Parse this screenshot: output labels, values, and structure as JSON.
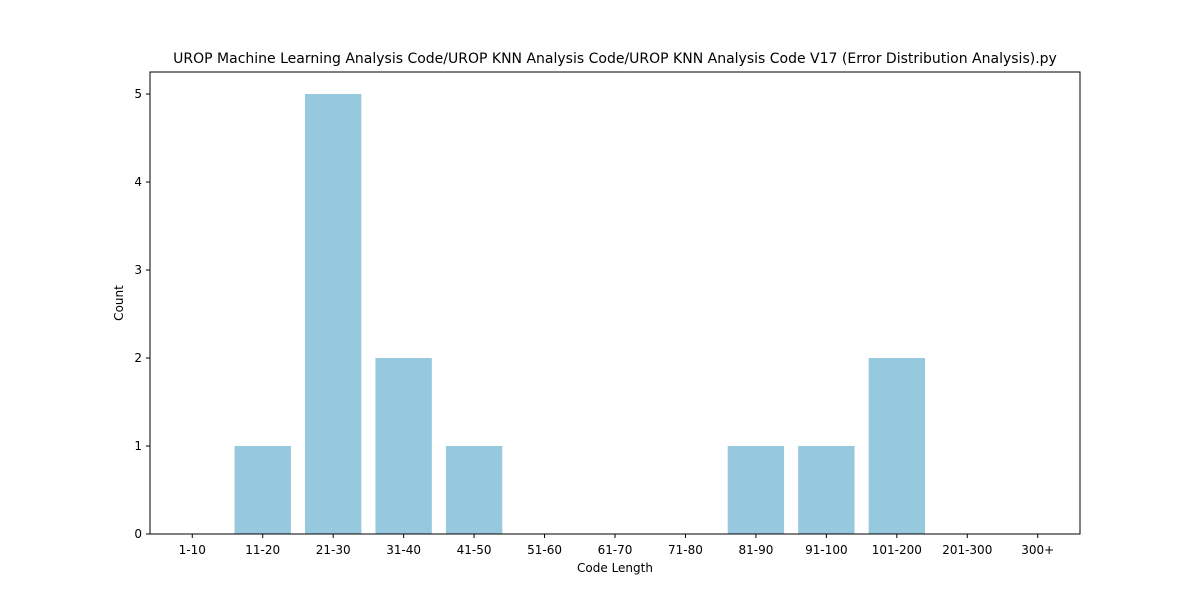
{
  "chart_data": {
    "type": "bar",
    "title": "UROP Machine Learning Analysis Code/UROP KNN Analysis Code/UROP KNN Analysis Code V17 (Error Distribution Analysis).py",
    "xlabel": "Code Length",
    "ylabel": "Count",
    "categories": [
      "1-10",
      "11-20",
      "21-30",
      "31-40",
      "41-50",
      "51-60",
      "61-70",
      "71-80",
      "81-90",
      "91-100",
      "101-200",
      "201-300",
      "300+"
    ],
    "values": [
      0,
      1,
      5,
      2,
      1,
      0,
      0,
      0,
      1,
      1,
      2,
      0,
      0
    ],
    "ylim": [
      0,
      5.25
    ],
    "yticks": [
      0,
      1,
      2,
      3,
      4,
      5
    ],
    "bar_color": "#96c9de",
    "grid": false,
    "legend": "none"
  }
}
